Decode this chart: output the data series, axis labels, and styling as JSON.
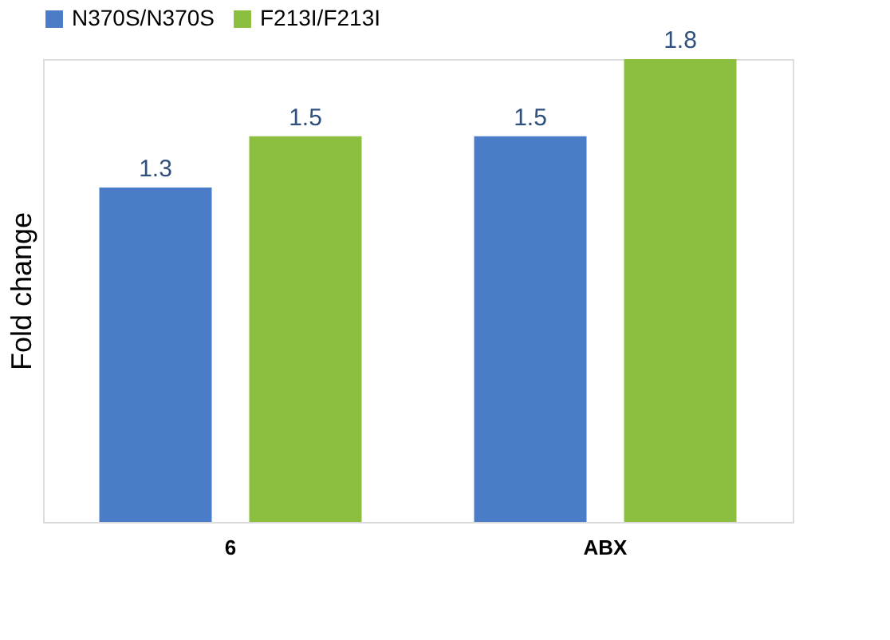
{
  "chart_data": {
    "type": "bar",
    "ylabel": "Fold change",
    "categories": [
      "6",
      "ABX"
    ],
    "series": [
      {
        "name": "N370S/N370S",
        "color": "#4a7cc8",
        "values": [
          1.3,
          1.5
        ]
      },
      {
        "name": "F213I/F213I",
        "color": "#8cbf3f",
        "values": [
          1.5,
          1.8
        ]
      }
    ],
    "data_labels": true,
    "legend": "top",
    "grid": false,
    "tick_labels": "x"
  }
}
